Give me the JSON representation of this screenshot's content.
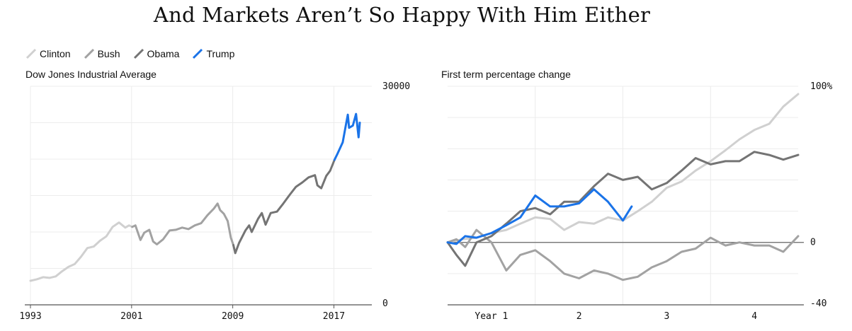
{
  "title": "And Markets Aren’t So Happy With Him Either",
  "legend": [
    {
      "name": "Clinton",
      "color": "#d0d0d0"
    },
    {
      "name": "Bush",
      "color": "#a2a2a2"
    },
    {
      "name": "Obama",
      "color": "#747474"
    },
    {
      "name": "Trump",
      "color": "#1a73e8"
    }
  ],
  "chart_data": [
    {
      "type": "line",
      "title": "Dow Jones Industrial Average",
      "x_ticks": [
        "1993",
        "2001",
        "2009",
        "2017"
      ],
      "xlim": [
        1993,
        2020
      ],
      "y_ticks": [
        "30000",
        "0"
      ],
      "ylim": [
        0,
        30000
      ],
      "grid": true,
      "series": [
        {
          "name": "Clinton",
          "color": "#d0d0d0",
          "points": [
            [
              1993.0,
              3300
            ],
            [
              1993.5,
              3500
            ],
            [
              1994.0,
              3800
            ],
            [
              1994.5,
              3700
            ],
            [
              1995.0,
              3900
            ],
            [
              1995.5,
              4600
            ],
            [
              1996.0,
              5200
            ],
            [
              1996.5,
              5600
            ],
            [
              1997.0,
              6600
            ],
            [
              1997.5,
              7800
            ],
            [
              1998.0,
              8000
            ],
            [
              1998.5,
              8800
            ],
            [
              1999.0,
              9400
            ],
            [
              1999.5,
              10700
            ],
            [
              2000.0,
              11300
            ],
            [
              2000.5,
              10600
            ],
            [
              2000.8,
              10900
            ],
            [
              2001.05,
              10700
            ]
          ]
        },
        {
          "name": "Bush",
          "color": "#a2a2a2",
          "points": [
            [
              2001.05,
              10700
            ],
            [
              2001.3,
              10900
            ],
            [
              2001.7,
              8900
            ],
            [
              2002.0,
              9900
            ],
            [
              2002.4,
              10300
            ],
            [
              2002.7,
              8700
            ],
            [
              2003.0,
              8300
            ],
            [
              2003.5,
              9000
            ],
            [
              2004.0,
              10200
            ],
            [
              2004.5,
              10300
            ],
            [
              2005.0,
              10600
            ],
            [
              2005.5,
              10400
            ],
            [
              2006.0,
              10900
            ],
            [
              2006.5,
              11200
            ],
            [
              2007.0,
              12300
            ],
            [
              2007.5,
              13200
            ],
            [
              2007.8,
              13900
            ],
            [
              2008.0,
              13000
            ],
            [
              2008.3,
              12500
            ],
            [
              2008.6,
              11500
            ],
            [
              2008.85,
              9200
            ],
            [
              2009.05,
              8200
            ]
          ]
        },
        {
          "name": "Obama",
          "color": "#747474",
          "points": [
            [
              2009.05,
              8200
            ],
            [
              2009.2,
              7100
            ],
            [
              2009.5,
              8500
            ],
            [
              2010.0,
              10200
            ],
            [
              2010.3,
              10900
            ],
            [
              2010.5,
              10000
            ],
            [
              2011.0,
              11800
            ],
            [
              2011.3,
              12600
            ],
            [
              2011.6,
              11000
            ],
            [
              2012.0,
              12600
            ],
            [
              2012.5,
              12800
            ],
            [
              2013.0,
              13900
            ],
            [
              2013.5,
              15100
            ],
            [
              2014.0,
              16200
            ],
            [
              2014.5,
              16800
            ],
            [
              2015.0,
              17500
            ],
            [
              2015.5,
              17800
            ],
            [
              2015.7,
              16400
            ],
            [
              2016.0,
              16000
            ],
            [
              2016.4,
              17700
            ],
            [
              2016.7,
              18400
            ],
            [
              2017.05,
              19900
            ]
          ]
        },
        {
          "name": "Trump",
          "color": "#1a73e8",
          "points": [
            [
              2017.05,
              19900
            ],
            [
              2017.3,
              20800
            ],
            [
              2017.7,
              22300
            ],
            [
              2017.95,
              24700
            ],
            [
              2018.1,
              26100
            ],
            [
              2018.2,
              24300
            ],
            [
              2018.5,
              24600
            ],
            [
              2018.75,
              26200
            ],
            [
              2018.95,
              23000
            ],
            [
              2019.05,
              25000
            ]
          ]
        }
      ]
    },
    {
      "type": "line",
      "title": "First term percentage change",
      "x_ticks": [
        "Year 1",
        "2",
        "3",
        "4"
      ],
      "xlim": [
        0,
        4
      ],
      "y_ticks": [
        "100%",
        "0",
        "-40"
      ],
      "ylim": [
        -40,
        100
      ],
      "grid": true,
      "series": [
        {
          "name": "Clinton",
          "color": "#d0d0d0",
          "points": [
            [
              0.0,
              0
            ],
            [
              0.17,
              2
            ],
            [
              0.33,
              3
            ],
            [
              0.5,
              6
            ],
            [
              0.67,
              8
            ],
            [
              0.83,
              12
            ],
            [
              1.0,
              16
            ],
            [
              1.17,
              15
            ],
            [
              1.33,
              8
            ],
            [
              1.5,
              13
            ],
            [
              1.67,
              12
            ],
            [
              1.83,
              16
            ],
            [
              2.0,
              14
            ],
            [
              2.17,
              20
            ],
            [
              2.33,
              26
            ],
            [
              2.5,
              35
            ],
            [
              2.67,
              39
            ],
            [
              2.83,
              46
            ],
            [
              3.0,
              52
            ],
            [
              3.17,
              59
            ],
            [
              3.33,
              66
            ],
            [
              3.5,
              72
            ],
            [
              3.67,
              76
            ],
            [
              3.83,
              87
            ],
            [
              4.0,
              95
            ]
          ]
        },
        {
          "name": "Bush",
          "color": "#a2a2a2",
          "points": [
            [
              0.0,
              0
            ],
            [
              0.1,
              2
            ],
            [
              0.2,
              -3
            ],
            [
              0.33,
              8
            ],
            [
              0.5,
              0
            ],
            [
              0.67,
              -18
            ],
            [
              0.83,
              -8
            ],
            [
              1.0,
              -5
            ],
            [
              1.17,
              -12
            ],
            [
              1.33,
              -20
            ],
            [
              1.5,
              -23
            ],
            [
              1.67,
              -18
            ],
            [
              1.83,
              -20
            ],
            [
              2.0,
              -24
            ],
            [
              2.17,
              -22
            ],
            [
              2.33,
              -16
            ],
            [
              2.5,
              -12
            ],
            [
              2.67,
              -6
            ],
            [
              2.83,
              -4
            ],
            [
              3.0,
              3
            ],
            [
              3.17,
              -2
            ],
            [
              3.33,
              0
            ],
            [
              3.5,
              -2
            ],
            [
              3.67,
              -2
            ],
            [
              3.83,
              -6
            ],
            [
              4.0,
              4
            ]
          ]
        },
        {
          "name": "Obama",
          "color": "#747474",
          "points": [
            [
              0.0,
              0
            ],
            [
              0.1,
              -8
            ],
            [
              0.2,
              -15
            ],
            [
              0.33,
              0
            ],
            [
              0.5,
              4
            ],
            [
              0.67,
              12
            ],
            [
              0.83,
              20
            ],
            [
              1.0,
              22
            ],
            [
              1.17,
              18
            ],
            [
              1.33,
              26
            ],
            [
              1.5,
              26
            ],
            [
              1.67,
              36
            ],
            [
              1.83,
              44
            ],
            [
              2.0,
              40
            ],
            [
              2.17,
              42
            ],
            [
              2.33,
              34
            ],
            [
              2.5,
              38
            ],
            [
              2.67,
              46
            ],
            [
              2.83,
              54
            ],
            [
              3.0,
              50
            ],
            [
              3.17,
              52
            ],
            [
              3.33,
              52
            ],
            [
              3.5,
              58
            ],
            [
              3.67,
              56
            ],
            [
              3.83,
              53
            ],
            [
              4.0,
              56
            ]
          ]
        },
        {
          "name": "Trump",
          "color": "#1a73e8",
          "points": [
            [
              0.0,
              0
            ],
            [
              0.1,
              -1
            ],
            [
              0.2,
              4
            ],
            [
              0.33,
              3
            ],
            [
              0.5,
              6
            ],
            [
              0.67,
              11
            ],
            [
              0.83,
              16
            ],
            [
              1.0,
              30
            ],
            [
              1.17,
              23
            ],
            [
              1.33,
              23
            ],
            [
              1.5,
              25
            ],
            [
              1.67,
              34
            ],
            [
              1.83,
              26
            ],
            [
              2.0,
              14
            ],
            [
              2.1,
              23
            ]
          ]
        }
      ]
    }
  ]
}
